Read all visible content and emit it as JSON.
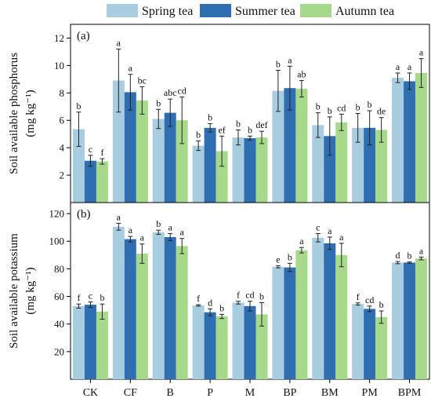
{
  "colors": {
    "spring": "#a9cde0",
    "summer": "#2f6fb1",
    "autumn": "#a7d98a"
  },
  "legend": [
    {
      "key": "spring",
      "label": "Spring tea"
    },
    {
      "key": "summer",
      "label": "Summer tea"
    },
    {
      "key": "autumn",
      "label": "Autumn tea"
    }
  ],
  "chart_data": [
    {
      "type": "bar",
      "panel_label": "(a)",
      "ylabel": "Soil available phosphorus (mg kg⁻¹)",
      "ylabel_line1": "Soil available phosphorus",
      "ylabel_line2": "(mg kg⁻¹)",
      "ylim": [
        0,
        13
      ],
      "yticks": [
        2,
        4,
        6,
        8,
        10,
        12
      ],
      "categories": [
        "CK",
        "CF",
        "B",
        "P",
        "M",
        "BP",
        "BM",
        "PM",
        "BPM"
      ],
      "series": [
        {
          "name": "Spring tea",
          "key": "spring",
          "values": [
            5.35,
            8.9,
            6.1,
            4.15,
            4.75,
            8.15,
            5.65,
            5.45,
            9.1
          ],
          "errors": [
            1.25,
            2.3,
            0.7,
            0.35,
            0.55,
            1.5,
            0.9,
            1.05,
            0.35
          ],
          "labels": [
            "b",
            "a",
            "b",
            "b",
            "b",
            "b",
            "b",
            "b",
            "a"
          ]
        },
        {
          "name": "Summer tea",
          "key": "summer",
          "values": [
            3.05,
            8.05,
            6.55,
            5.45,
            4.7,
            8.35,
            4.85,
            5.45,
            8.85
          ],
          "errors": [
            0.4,
            1.3,
            1.0,
            0.3,
            0.15,
            1.6,
            1.4,
            1.25,
            0.6
          ],
          "labels": [
            "c",
            "a",
            "abc",
            "b",
            "b",
            "a",
            "b",
            "b",
            "a"
          ]
        },
        {
          "name": "Autumn tea",
          "key": "autumn",
          "values": [
            3.0,
            7.45,
            6.0,
            3.75,
            4.75,
            8.3,
            5.85,
            5.3,
            9.45
          ],
          "errors": [
            0.2,
            1.0,
            1.7,
            1.1,
            0.45,
            0.6,
            0.6,
            0.9,
            1.05
          ],
          "labels": [
            "f",
            "bc",
            "cd",
            "ef",
            "def",
            "ab",
            "cd",
            "de",
            "a"
          ]
        }
      ]
    },
    {
      "type": "bar",
      "panel_label": "(b)",
      "ylabel": "Soil available potassium (mg kg⁻¹)",
      "ylabel_line1": "Soil available potassium",
      "ylabel_line2": "(mg kg⁻¹)",
      "ylim": [
        0,
        128
      ],
      "yticks": [
        20,
        40,
        60,
        80,
        100,
        120
      ],
      "categories": [
        "CK",
        "CF",
        "B",
        "P",
        "M",
        "BP",
        "BM",
        "PM",
        "BPM"
      ],
      "series": [
        {
          "name": "Spring tea",
          "key": "spring",
          "values": [
            53,
            110.5,
            106.5,
            53.5,
            55.5,
            81.5,
            102.5,
            54.5,
            84.5
          ],
          "errors": [
            1.5,
            2.5,
            1.5,
            0.5,
            1.0,
            0.8,
            3.0,
            0.8,
            0.8
          ],
          "labels": [
            "f",
            "a",
            "b",
            "f",
            "f",
            "e",
            "c",
            "f",
            "d"
          ]
        },
        {
          "name": "Summer tea",
          "key": "summer",
          "values": [
            54,
            101.5,
            103,
            48.5,
            53,
            81,
            98.5,
            51,
            84.5
          ],
          "errors": [
            2.0,
            2.0,
            2.5,
            2.5,
            3.5,
            3.0,
            4.5,
            2.0,
            0.5
          ],
          "labels": [
            "c",
            "a",
            "a",
            "d",
            "cd",
            "b",
            "a",
            "cd",
            "b"
          ]
        },
        {
          "name": "Autumn tea",
          "key": "autumn",
          "values": [
            49,
            91,
            96.5,
            45.5,
            47,
            93.5,
            90,
            45,
            87.5
          ],
          "errors": [
            5.5,
            7.0,
            5.5,
            1.5,
            8.5,
            2.0,
            8.5,
            4.5,
            1.0
          ],
          "labels": [
            "b",
            "a",
            "a",
            "b",
            "b",
            "a",
            "a",
            "b",
            "a"
          ]
        }
      ]
    }
  ]
}
